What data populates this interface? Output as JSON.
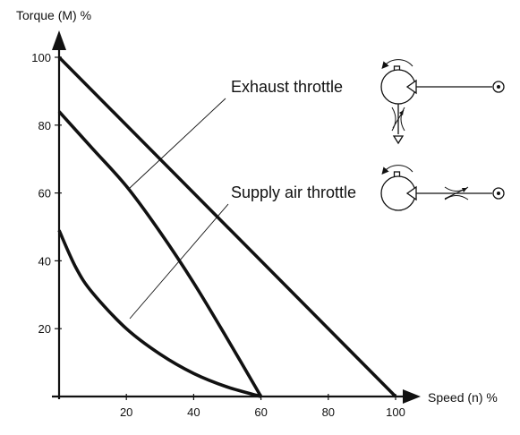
{
  "chart_data": {
    "type": "line",
    "xlabel": "Speed (n) %",
    "ylabel": "Torque (M) %",
    "xlim": [
      0,
      100
    ],
    "ylim": [
      0,
      100
    ],
    "x_ticks": [
      20,
      40,
      60,
      80,
      100
    ],
    "y_ticks": [
      20,
      40,
      60,
      80,
      100
    ],
    "grid": false,
    "series": [
      {
        "points": [
          [
            0,
            100
          ],
          [
            100,
            0
          ]
        ]
      },
      {
        "points": [
          [
            0,
            84
          ],
          [
            10,
            73
          ],
          [
            20,
            62
          ],
          [
            30,
            48.5
          ],
          [
            40,
            33.5
          ],
          [
            50,
            17
          ],
          [
            60,
            0
          ]
        ]
      },
      {
        "points": [
          [
            0,
            49
          ],
          [
            5,
            38
          ],
          [
            10,
            30.5
          ],
          [
            20,
            20
          ],
          [
            30,
            12.5
          ],
          [
            40,
            6.8
          ],
          [
            50,
            2.8
          ],
          [
            60,
            0
          ]
        ]
      }
    ],
    "annotations": [
      {
        "text": "Exhaust throttle",
        "points_to": [
          20,
          62
        ]
      },
      {
        "text": "Supply air throttle",
        "points_to": [
          20,
          23
        ]
      }
    ],
    "colors": {
      "line": "#111111",
      "axis": "#111111"
    },
    "icons": [
      "exhaust-throttle-schematic-icon",
      "supply-air-throttle-schematic-icon"
    ]
  }
}
